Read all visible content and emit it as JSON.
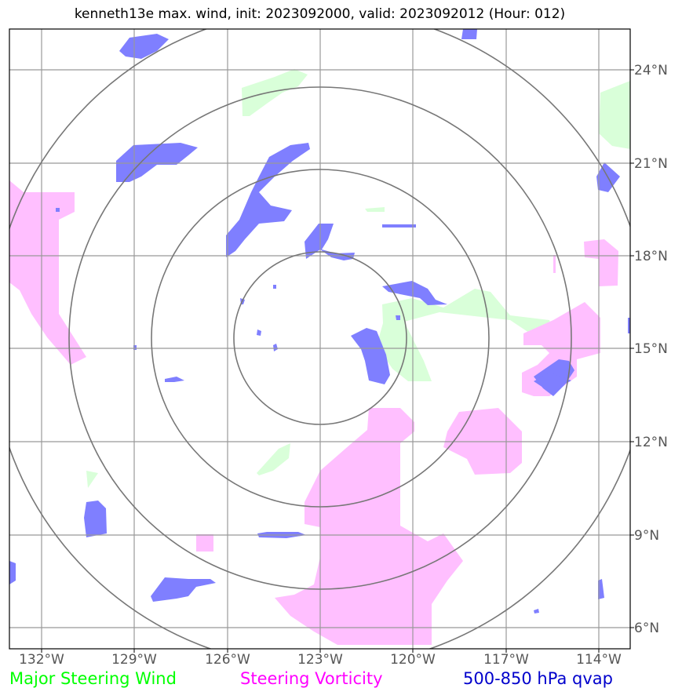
{
  "title": "kenneth13e max. wind, init: 2023092000, valid: 2023092012 (Hour: 012)",
  "map": {
    "lon_labels": [
      "132°W",
      "129°W",
      "126°W",
      "123°W",
      "120°W",
      "117°W",
      "114°W"
    ],
    "lat_labels": [
      "24°N",
      "21°N",
      "18°N",
      "15°N",
      "12°N",
      "9°N",
      "6°N"
    ],
    "range_rings": 4
  },
  "legend": {
    "wind": {
      "label": "Major Steering Wind",
      "color": "#00ff00"
    },
    "vorticity": {
      "label": "Steering Vorticity",
      "color": "#ff00ff"
    },
    "qvap": {
      "label": "500-850 hPa qvap",
      "color": "#0000cc"
    }
  },
  "colors": {
    "wind_fill": "#d9ffd9",
    "vorticity_fill": "#ffbfff",
    "qvap_fill": "#7f7fff",
    "grid": "#999999",
    "ring": "#777777"
  }
}
